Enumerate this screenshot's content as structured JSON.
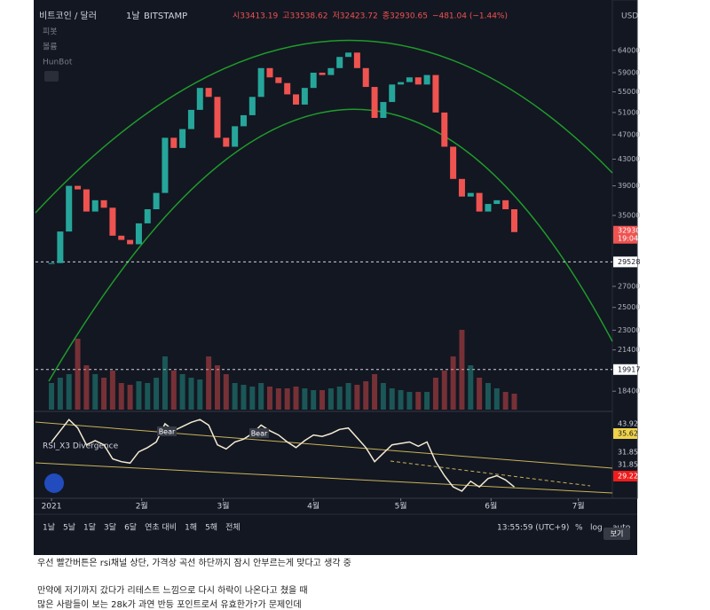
{
  "header": {
    "symbol": "비트코인 / 달러",
    "interval": "1날",
    "exchange": "BITSTAMP",
    "ohlc": [
      "시33413.19",
      "고33538.62",
      "저32423.72",
      "종32930.65",
      "−481.04 (−1.44%)"
    ],
    "currency": "USD"
  },
  "indicators": [
    "피봇",
    "볼륨",
    "HunBot"
  ],
  "chart_data": {
    "type": "candlestick",
    "x": [
      0,
      3,
      6,
      9,
      12,
      15,
      18,
      21,
      24,
      27,
      30,
      33,
      36,
      39,
      42,
      45,
      48,
      51,
      54,
      57,
      60,
      63,
      66,
      69,
      72,
      75,
      78,
      81,
      84,
      87,
      90,
      93,
      96,
      99,
      102,
      105,
      108,
      111,
      114,
      117,
      120,
      123,
      126,
      129,
      132,
      135,
      138,
      141,
      144,
      147,
      150,
      153,
      156,
      159
    ],
    "closes": [
      29400,
      33000,
      39000,
      38500,
      35500,
      37000,
      36000,
      32500,
      32000,
      31500,
      34000,
      35800,
      38000,
      46500,
      44800,
      48000,
      51500,
      55800,
      54000,
      46500,
      45000,
      48500,
      50500,
      54000,
      60000,
      58000,
      56800,
      54500,
      52500,
      55800,
      59000,
      58500,
      60000,
      62500,
      63500,
      60000,
      56000,
      50000,
      53000,
      56500,
      57000,
      58000,
      56500,
      58500,
      51000,
      45000,
      40000,
      37500,
      38000,
      35500,
      36500,
      37000,
      35800,
      32930
    ],
    "volumes": [
      15,
      18,
      20,
      40,
      25,
      20,
      18,
      22,
      15,
      14,
      16,
      15,
      18,
      30,
      22,
      20,
      18,
      17,
      30,
      25,
      20,
      15,
      14,
      13,
      15,
      13,
      12,
      12,
      13,
      12,
      11,
      11,
      12,
      13,
      15,
      14,
      16,
      20,
      15,
      12,
      11,
      10,
      10,
      10,
      18,
      22,
      30,
      45,
      25,
      18,
      15,
      12,
      10,
      9
    ],
    "rsi": [
      62,
      70,
      78,
      72,
      60,
      63,
      60,
      50,
      48,
      47,
      55,
      58,
      62,
      75,
      70,
      73,
      76,
      78,
      74,
      60,
      57,
      62,
      64,
      68,
      74,
      70,
      67,
      62,
      58,
      63,
      67,
      66,
      68,
      71,
      72,
      65,
      58,
      48,
      54,
      60,
      61,
      62,
      59,
      62,
      48,
      38,
      30,
      27,
      34,
      30,
      36,
      38,
      35,
      30
    ],
    "rsi_ylim": [
      20,
      80
    ],
    "log_scale": true,
    "ylim": [
      17200,
      75000
    ],
    "yticks": [
      64000,
      59000,
      55000,
      51000,
      47000,
      43000,
      39000,
      35000,
      27000,
      25000,
      23000,
      21400,
      18400
    ],
    "levels": [
      29528,
      19917
    ],
    "xlim": [
      -5.5,
      192.7
    ],
    "xticks": [
      {
        "value": 0,
        "label": "2021"
      },
      {
        "value": 31,
        "label": "2월"
      },
      {
        "value": 59,
        "label": "3월"
      },
      {
        "value": 90,
        "label": "4월"
      },
      {
        "value": 120,
        "label": "5월"
      },
      {
        "value": 151,
        "label": "6월"
      },
      {
        "value": 181,
        "label": "7월"
      }
    ],
    "up_color": "#26a69a",
    "down_color": "#ef5350",
    "last_price": {
      "label": "32930",
      "time": "19:04"
    },
    "rsi_title": "RSI_X3 Divergence",
    "rsi_markers": [
      "Bear",
      "Bear"
    ],
    "rsi_labels": [
      "43.92",
      "35.62",
      "31.85",
      "31.85",
      "29.22"
    ]
  },
  "toolbar": {
    "ranges": [
      "1날",
      "5날",
      "1달",
      "3달",
      "6달",
      "연초 대비",
      "1해",
      "5해",
      "전체"
    ],
    "clock": "13:55:59 (UTC+9)",
    "options": [
      "%",
      "log",
      "auto"
    ],
    "view_button": "보기"
  },
  "post": [
    "우선 빨간버튼은 rsi채널 상단, 가격상 곡선 하단까지 잠시 안부르는게 맞다고 생각 중",
    "만약에 저기까지  갔다가 리테스트 느낌으로 다시 하락이 나온다고 쳤을 때",
    "많은 사람들이 보는 28k가 과연 반등 포인트로서 유효한가?가 문제인데"
  ]
}
